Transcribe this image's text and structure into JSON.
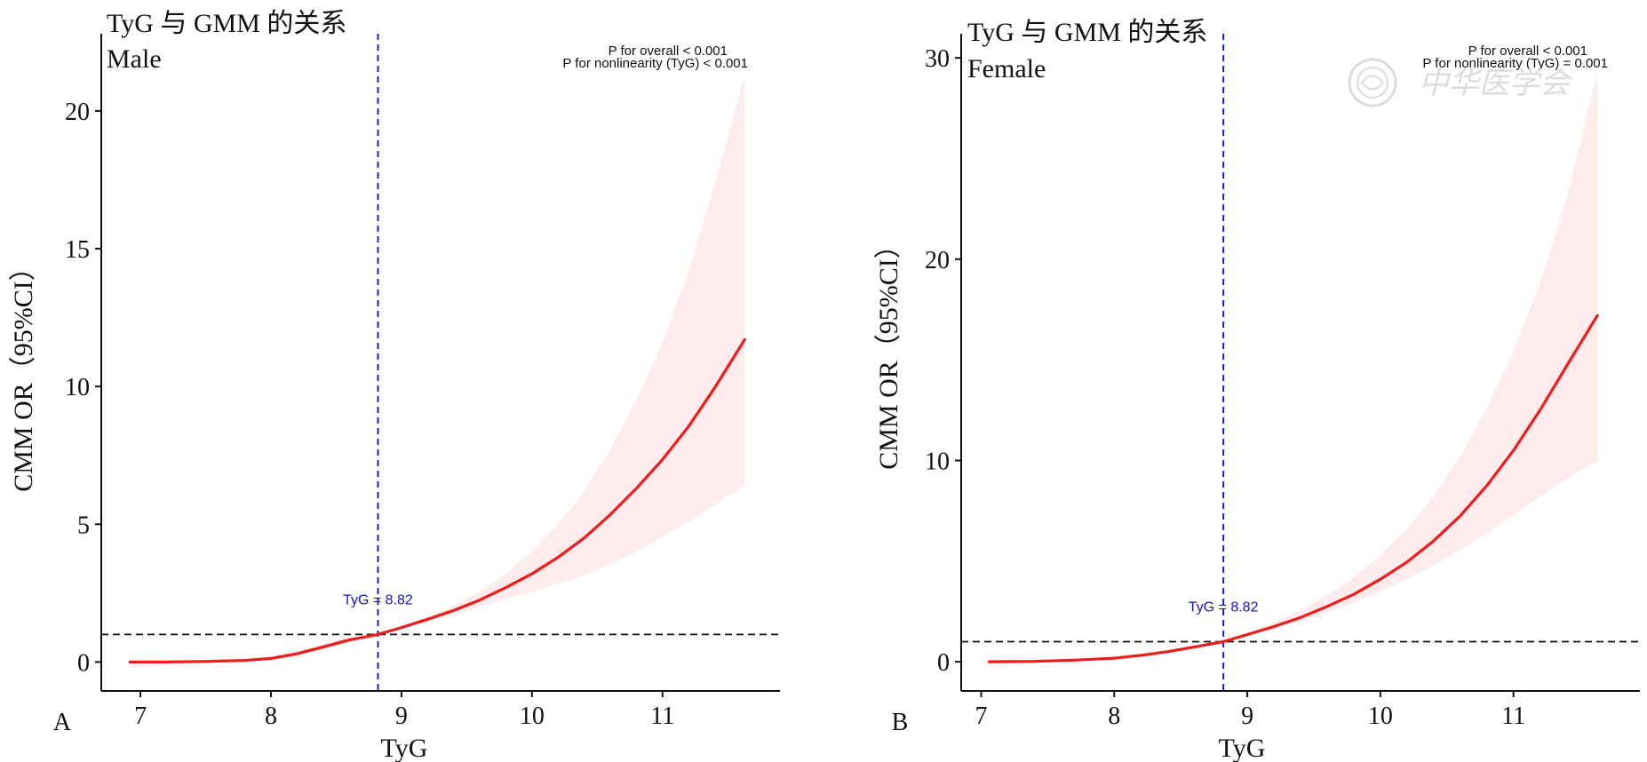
{
  "panels": [
    {
      "id": "A",
      "panel_letter": "A",
      "title": "TyG 与 GMM 的关系",
      "subtitle": "Male",
      "p_overall": "P for overall < 0.001",
      "p_nonlinear": "P for nonlinearity (TyG) < 0.001",
      "cutoff_label": "TyG = 8.82",
      "xlabel": "TyG",
      "ylabel": "CMM OR（95%CI）"
    },
    {
      "id": "B",
      "panel_letter": "B",
      "title": "TyG 与 GMM 的关系",
      "subtitle": "Female",
      "p_overall": "P for overall < 0.001",
      "p_nonlinear": "P for nonlinearity (TyG) = 0.001",
      "cutoff_label": "TyG = 8.82",
      "xlabel": "TyG",
      "ylabel": "CMM OR（95%CI）"
    }
  ],
  "watermark": {
    "text": "中华医学会",
    "icon": "seal-icon"
  },
  "colors": {
    "curve": "#ee1c1c",
    "band": "#fdeceb",
    "cutoff_line": "#1a1aee",
    "cutoff_label": "#1414dd",
    "reference_line": "#111111"
  },
  "chart_data": [
    {
      "type": "line",
      "title": "TyG 与 GMM 的关系",
      "subtitle": "Male",
      "xlabel": "TyG",
      "ylabel": "CMM OR（95%CI）",
      "xlim": [
        6.7,
        11.9
      ],
      "ylim": [
        -1.05,
        22.8
      ],
      "xticks": [
        7,
        8,
        9,
        10,
        11
      ],
      "yticks": [
        0,
        5,
        10,
        15,
        20
      ],
      "reference_y": 1,
      "cutoff_x": 8.82,
      "grid": false,
      "series": [
        {
          "x": [
            6.92,
            7.2,
            7.5,
            7.8,
            8.0,
            8.2,
            8.4,
            8.6,
            8.82,
            9.0,
            9.2,
            9.4,
            9.6,
            9.8,
            10.0,
            10.2,
            10.4,
            10.6,
            10.8,
            11.0,
            11.2,
            11.4,
            11.63
          ],
          "y": [
            0.0,
            0.0,
            0.02,
            0.06,
            0.13,
            0.3,
            0.55,
            0.8,
            1.0,
            1.25,
            1.55,
            1.87,
            2.25,
            2.7,
            3.2,
            3.8,
            4.5,
            5.35,
            6.3,
            7.35,
            8.55,
            9.95,
            11.7
          ],
          "lower": [
            0.0,
            0.0,
            0.0,
            0.03,
            0.08,
            0.2,
            0.45,
            0.72,
            1.0,
            1.2,
            1.45,
            1.72,
            2.0,
            2.3,
            2.55,
            2.85,
            3.15,
            3.55,
            4.0,
            4.55,
            5.1,
            5.7,
            6.4
          ],
          "upper": [
            0.0,
            0.01,
            0.04,
            0.1,
            0.2,
            0.4,
            0.65,
            0.9,
            1.0,
            1.3,
            1.65,
            2.05,
            2.55,
            3.2,
            4.0,
            5.0,
            6.2,
            7.7,
            9.5,
            11.6,
            14.2,
            17.3,
            21.3
          ]
        }
      ]
    },
    {
      "type": "line",
      "title": "TyG 与 GMM 的关系",
      "subtitle": "Female",
      "xlabel": "TyG",
      "ylabel": "CMM OR（95%CI）",
      "xlim": [
        6.85,
        11.95
      ],
      "ylim": [
        -1.45,
        31.2
      ],
      "xticks": [
        7,
        8,
        9,
        10,
        11
      ],
      "yticks": [
        0,
        10,
        20,
        30
      ],
      "reference_y": 1,
      "cutoff_x": 8.82,
      "grid": false,
      "series": [
        {
          "x": [
            7.06,
            7.4,
            7.7,
            8.0,
            8.2,
            8.4,
            8.6,
            8.82,
            9.0,
            9.2,
            9.4,
            9.6,
            9.8,
            10.0,
            10.2,
            10.4,
            10.6,
            10.8,
            11.0,
            11.2,
            11.4,
            11.63
          ],
          "y": [
            0.0,
            0.02,
            0.08,
            0.18,
            0.32,
            0.5,
            0.73,
            1.0,
            1.35,
            1.75,
            2.2,
            2.75,
            3.35,
            4.1,
            4.95,
            6.0,
            7.25,
            8.75,
            10.5,
            12.5,
            14.7,
            17.2
          ],
          "lower": [
            0.0,
            0.01,
            0.05,
            0.13,
            0.25,
            0.42,
            0.66,
            1.0,
            1.28,
            1.62,
            2.0,
            2.45,
            2.95,
            3.5,
            4.1,
            4.8,
            5.55,
            6.4,
            7.3,
            8.2,
            9.1,
            10.0
          ],
          "upper": [
            0.0,
            0.04,
            0.12,
            0.25,
            0.4,
            0.6,
            0.82,
            1.0,
            1.45,
            1.95,
            2.55,
            3.3,
            4.2,
            5.3,
            6.6,
            8.2,
            10.2,
            12.6,
            15.4,
            18.8,
            23.0,
            29.3
          ]
        }
      ]
    }
  ]
}
